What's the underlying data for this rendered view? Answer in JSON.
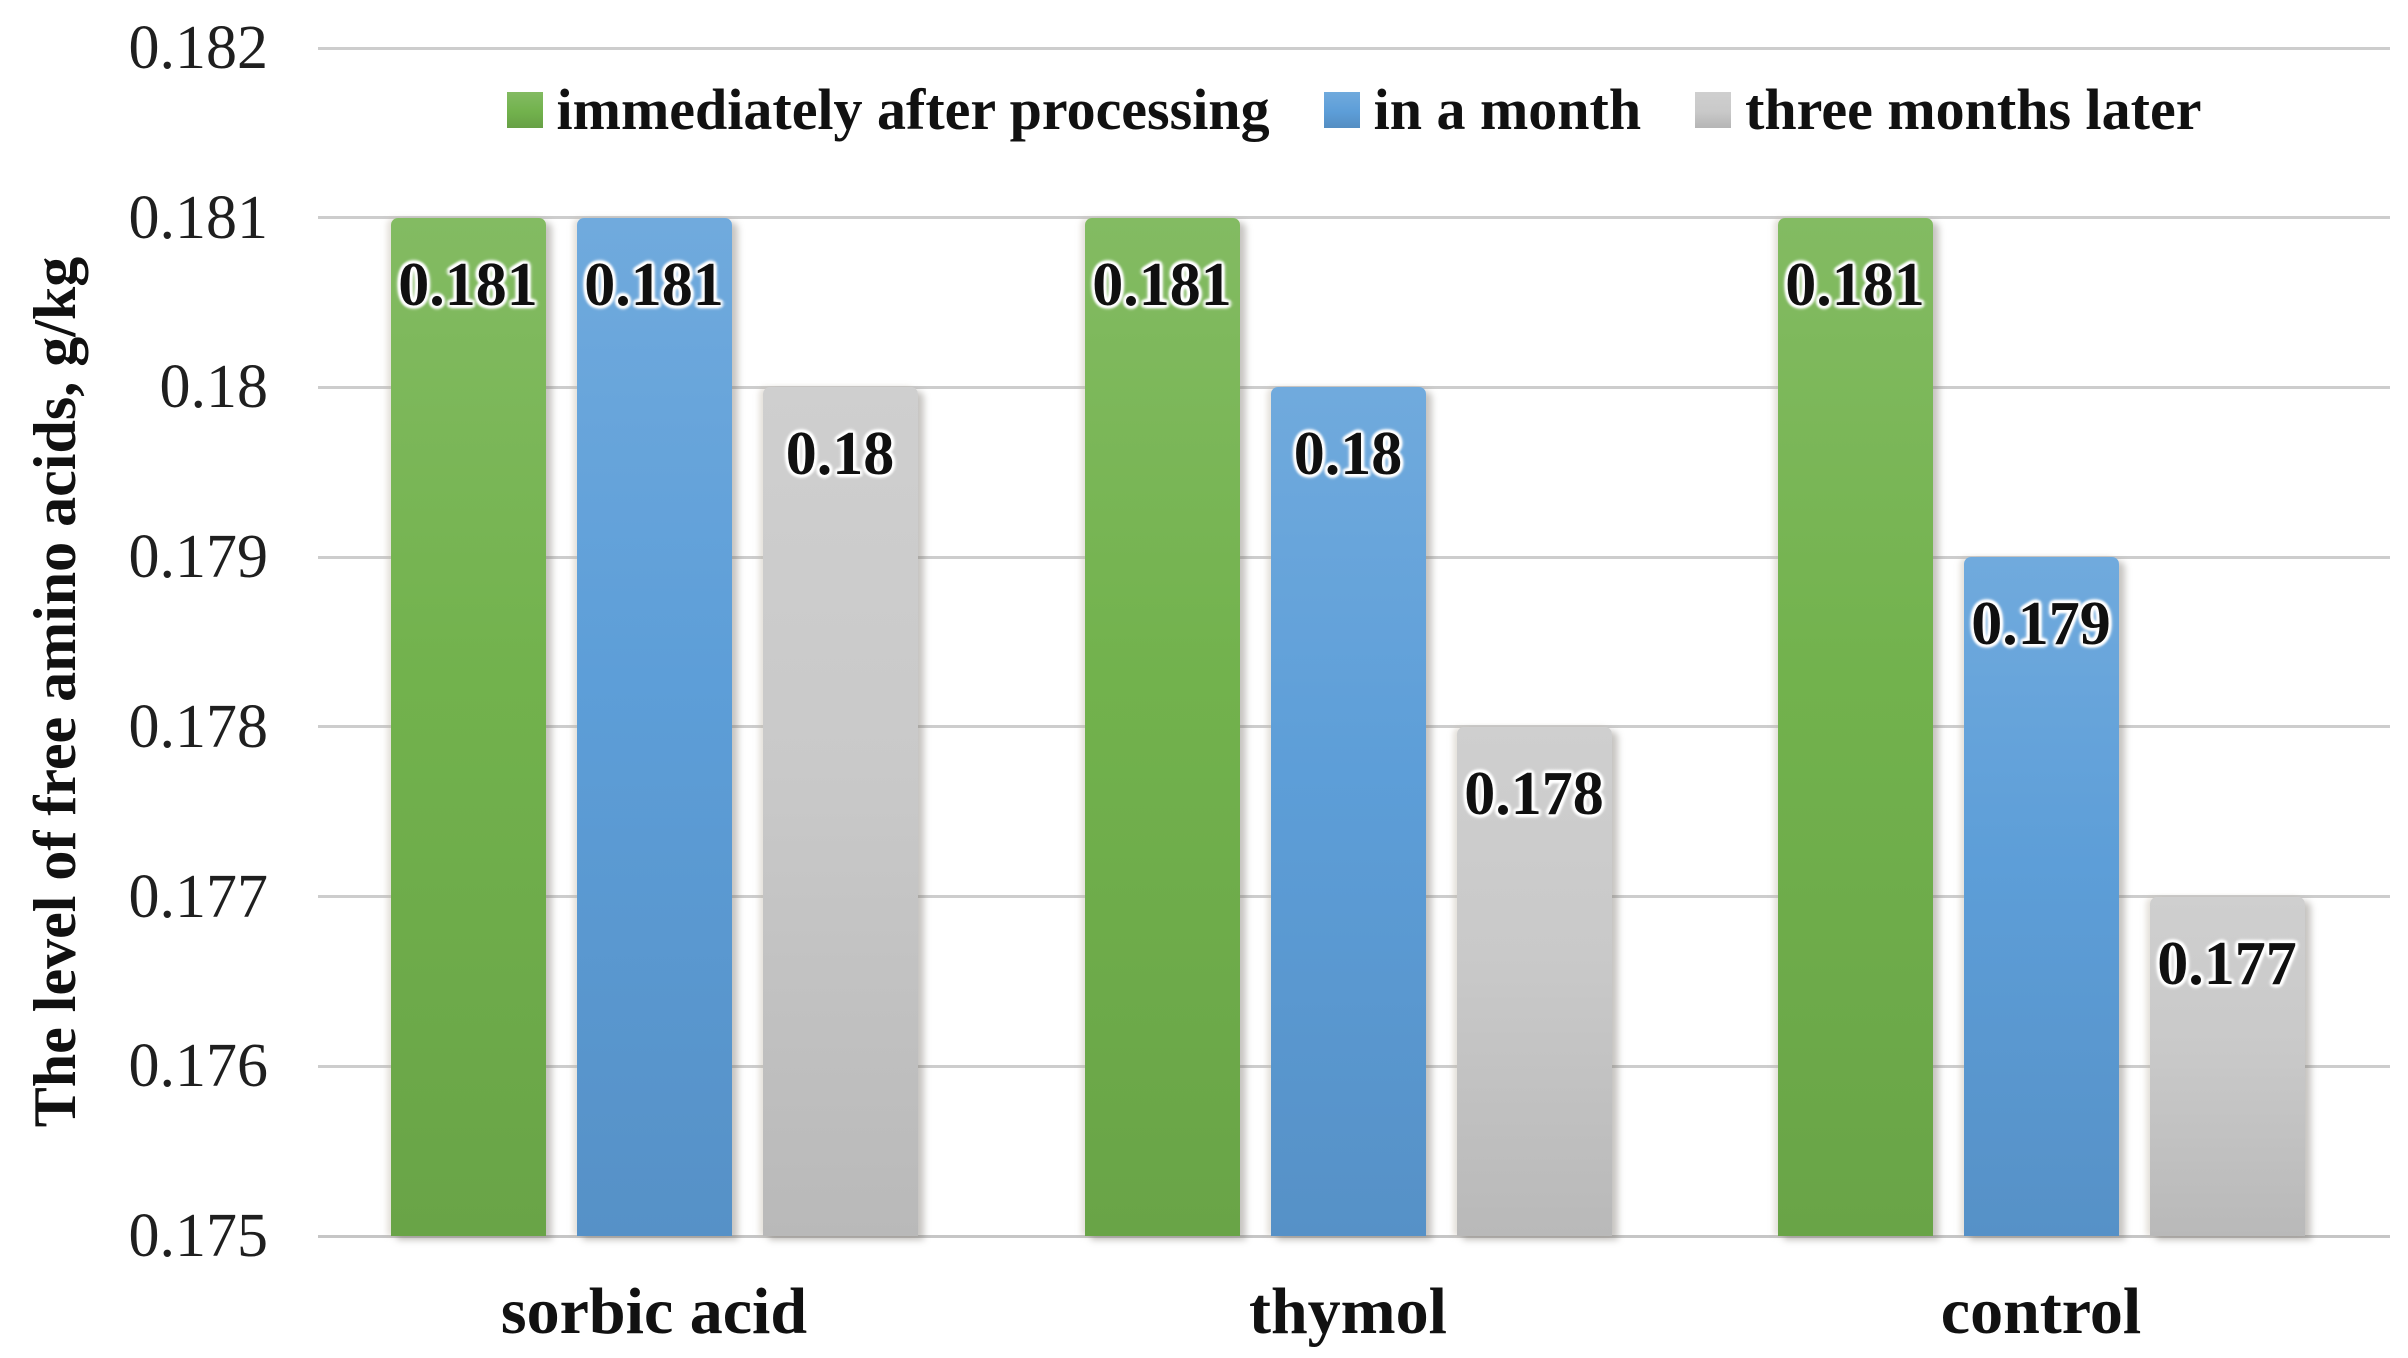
{
  "chart_data": {
    "type": "bar",
    "title": "",
    "xlabel": "",
    "ylabel": "The level of free amino acids, g/kg",
    "categories": [
      "sorbic acid",
      "thymol",
      "control"
    ],
    "series": [
      {
        "name": "immediately after processing",
        "color": "#72b24d",
        "values": [
          0.181,
          0.181,
          0.181
        ],
        "data_labels": [
          "0.181",
          "0.181",
          "0.181"
        ]
      },
      {
        "name": "in a month",
        "color": "#5d9ed8",
        "values": [
          0.181,
          0.18,
          0.179
        ],
        "data_labels": [
          "0.181",
          "0.18",
          "0.179"
        ]
      },
      {
        "name": "three months later",
        "color": "#c9c9c9",
        "values": [
          0.18,
          0.178,
          0.177
        ],
        "data_labels": [
          "0.18",
          "0.178",
          "0.177"
        ]
      }
    ],
    "ylim": [
      0.175,
      0.182
    ],
    "ytick_step": 0.001,
    "yticks": [
      {
        "value": 0.182,
        "label": "0.182"
      },
      {
        "value": 0.181,
        "label": "0.181"
      },
      {
        "value": 0.18,
        "label": "0.18"
      },
      {
        "value": 0.179,
        "label": "0.179"
      },
      {
        "value": 0.178,
        "label": "0.178"
      },
      {
        "value": 0.177,
        "label": "0.177"
      },
      {
        "value": 0.176,
        "label": "0.176"
      },
      {
        "value": 0.175,
        "label": "0.175"
      }
    ],
    "grid": true,
    "legend_position": "top-center",
    "data_labels_position": "inside-end"
  },
  "colors": {
    "background": "#ffffff",
    "gridline": "#cdcdcd",
    "text": "#111111",
    "series_green": "#72b24d",
    "series_blue": "#5d9ed8",
    "series_gray": "#c9c9c9"
  }
}
